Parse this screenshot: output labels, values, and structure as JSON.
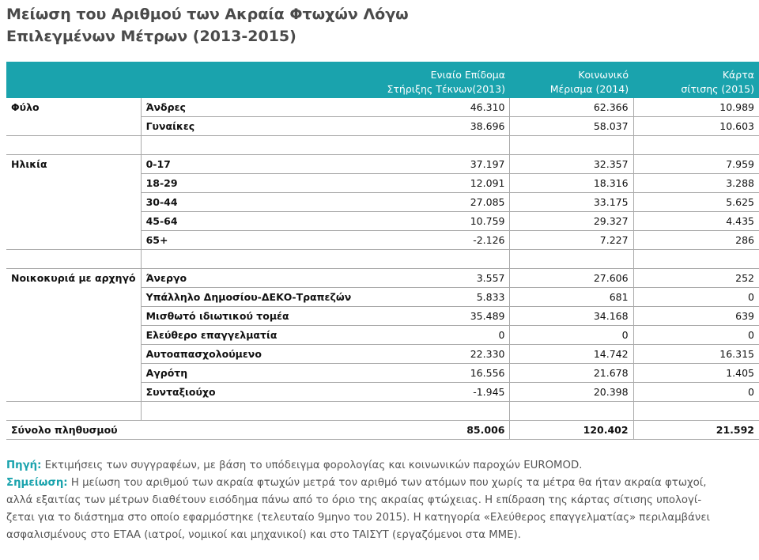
{
  "title": "Μείωση του Αριθμού των Ακραία Φτωχών Λόγω Επιλεγμένων Μέτρων (2013-2015)",
  "table": {
    "columns": [
      "Ενιαίο Επίδομα\nΣτήριξης Τέκνων(2013)",
      "Κοινωνικό\nΜέρισμα (2014)",
      "Κάρτα\nσίτισης (2015)"
    ],
    "groups": [
      {
        "label": "Φύλο",
        "rows": [
          [
            "Άνδρες",
            "46.310",
            "62.366",
            "10.989"
          ],
          [
            "Γυναίκες",
            "38.696",
            "58.037",
            "10.603"
          ]
        ]
      },
      {
        "label": "Ηλικία",
        "rows": [
          [
            "0-17",
            "37.197",
            "32.357",
            "7.959"
          ],
          [
            "18-29",
            "12.091",
            "18.316",
            "3.288"
          ],
          [
            "30-44",
            "27.085",
            "33.175",
            "5.625"
          ],
          [
            "45-64",
            "10.759",
            "29.327",
            "4.435"
          ],
          [
            "65+",
            "-2.126",
            "7.227",
            "286"
          ]
        ]
      },
      {
        "label": "Νοικοκυριά με αρχηγό",
        "rows": [
          [
            "Άνεργο",
            "3.557",
            "27.606",
            "252"
          ],
          [
            "Υπάλληλο Δημοσίου-ΔΕΚΟ-Τραπεζών",
            "5.833",
            "681",
            "0"
          ],
          [
            "Μισθωτό ιδιωτικού τομέα",
            "35.489",
            "34.168",
            "639"
          ],
          [
            "Ελεύθερο επαγγελματία",
            "0",
            "0",
            "0"
          ],
          [
            "Αυτοαπασχολούμενο",
            "22.330",
            "14.742",
            "16.315"
          ],
          [
            "Αγρότη",
            "16.556",
            "21.678",
            "1.405"
          ],
          [
            "Συνταξιούχο",
            "-1.945",
            "20.398",
            "0"
          ]
        ]
      }
    ],
    "total": [
      "Σύνολο πληθυσμού",
      "85.006",
      "120.402",
      "21.592"
    ]
  },
  "notes": [
    {
      "label": "Πηγή:",
      "text": "Εκτιμήσεις των συγγραφέων, με βάση το υπόδειγμα φορολογίας και κοινωνικών παροχών EUROMOD."
    },
    {
      "label": "Σημείωση:",
      "text": "Η μείωση του αριθμού των ακραία φτωχών μετρά τον αριθμό των ατόμων που χωρίς τα μέτρα θα ήταν ακραία φτωχοί,\nαλλά εξαιτίας των μέτρων διαθέτουν εισόδημα πάνω από το όριο της ακραίας φτώχειας. Η επίδραση της κάρτας σίτισης υπολογί-\nζεται για το διάστημα στο οποίο εφαρμόστηκε (τελευταίο 9μηνο του 2015). Η κατηγορία «Ελεύθερος επαγγελματίας» περιλαμβάνει\nασφαλισμένους στο ΕΤΑΑ (ιατροί, νομικοί και μηχανικοί) και στο ΤΑΙΣΥΤ (εργαζόμενοι στα ΜΜΕ)."
    }
  ]
}
